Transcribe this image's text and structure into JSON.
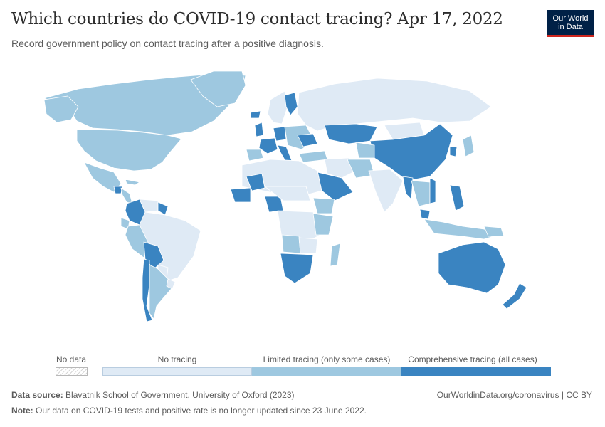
{
  "header": {
    "title": "Which countries do COVID-19 contact tracing? Apr 17, 2022",
    "subtitle": "Record government policy on contact tracing after a positive diagnosis."
  },
  "logo": {
    "line1": "Our World",
    "line2": "in Data"
  },
  "legend": {
    "no_data_label": "No data",
    "categories": [
      {
        "label": "No tracing",
        "color": "#dfeaf5"
      },
      {
        "label": "Limited tracing (only some cases)",
        "color": "#9ec8e0"
      },
      {
        "label": "Comprehensive tracing (all cases)",
        "color": "#3a84c1"
      }
    ]
  },
  "map": {
    "colors": {
      "none": "#dfeaf5",
      "limited": "#9ec8e0",
      "comprehensive": "#3a84c1",
      "border": "#ffffff"
    }
  },
  "footer": {
    "source_label": "Data source:",
    "source_text": "Blavatnik School of Government, University of Oxford (2023)",
    "note_label": "Note:",
    "note_text": "Our data on COVID-19 tests and positive rate is no longer updated since 23 June 2022.",
    "credit": "OurWorldinData.org/coronavirus | CC BY"
  }
}
